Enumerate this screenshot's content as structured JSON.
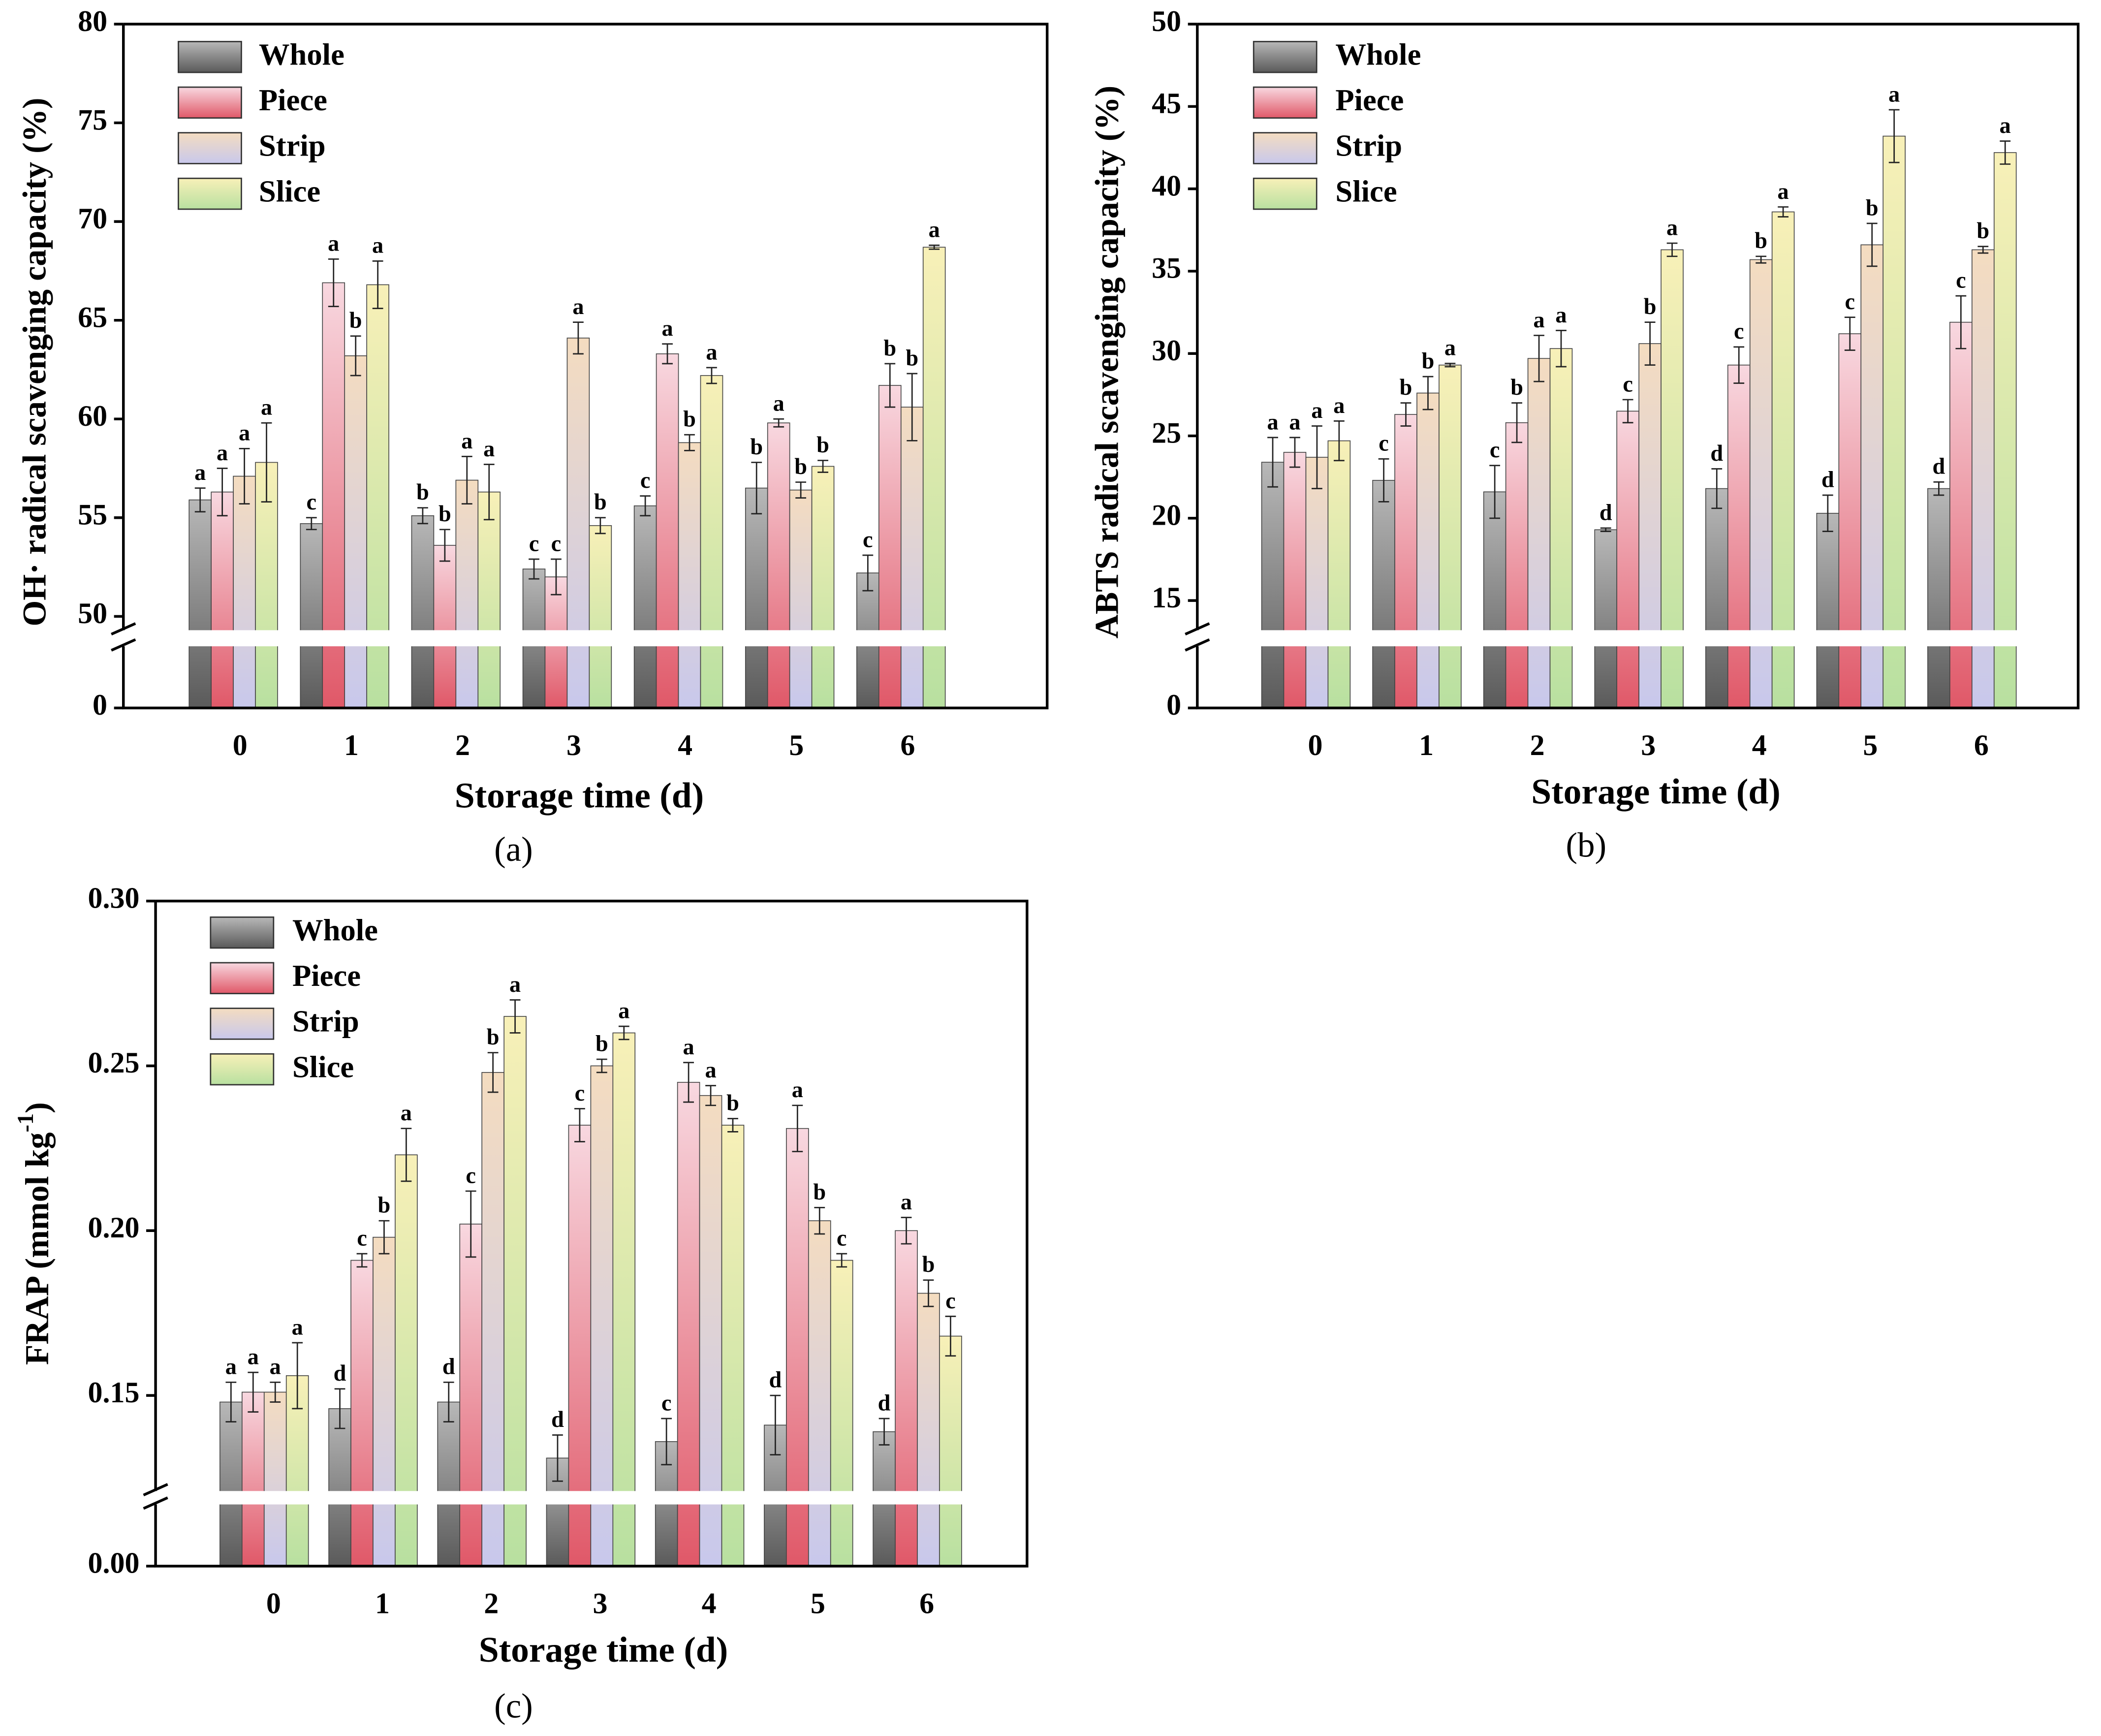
{
  "chart_data": [
    {
      "type": "bar",
      "caption": "(a)",
      "xlabel": "Storage time (d)",
      "ylabel": [
        "OH· radical scavenging capacity (%)"
      ],
      "categories": [
        "0",
        "1",
        "2",
        "3",
        "4",
        "5",
        "6"
      ],
      "ylim": [
        49.3,
        80
      ],
      "yticks": [
        0,
        50,
        55,
        60,
        65,
        70,
        75,
        80
      ],
      "axis_break": true,
      "series": [
        {
          "name": "Whole",
          "color": [
            "#b8b8b8",
            "#5a5a5a"
          ],
          "values": [
            55.9,
            54.7,
            55.1,
            52.4,
            55.6,
            56.5,
            52.2
          ],
          "errors": [
            0.6,
            0.3,
            0.4,
            0.5,
            0.5,
            1.3,
            0.9
          ],
          "letters": [
            "a",
            "c",
            "b",
            "c",
            "c",
            "b",
            "c"
          ]
        },
        {
          "name": "Piece",
          "color": [
            "#f8d8e0",
            "#e05868"
          ],
          "values": [
            56.3,
            66.9,
            53.6,
            52.0,
            63.3,
            59.8,
            61.7
          ],
          "errors": [
            1.2,
            1.2,
            0.8,
            0.9,
            0.5,
            0.2,
            1.1
          ],
          "letters": [
            "a",
            "a",
            "b",
            "c",
            "a",
            "a",
            "b"
          ]
        },
        {
          "name": "Strip",
          "color": [
            "#f4dcc0",
            "#c8c8ec"
          ],
          "values": [
            57.1,
            63.2,
            56.9,
            64.1,
            58.8,
            56.4,
            60.6
          ],
          "errors": [
            1.4,
            1.0,
            1.2,
            0.8,
            0.4,
            0.4,
            1.7
          ],
          "letters": [
            "a",
            "b",
            "a",
            "a",
            "b",
            "b",
            "b"
          ]
        },
        {
          "name": "Slice",
          "color": [
            "#f8f0b8",
            "#b8e0a0"
          ],
          "values": [
            57.8,
            66.8,
            56.3,
            54.6,
            62.2,
            57.6,
            68.7
          ],
          "errors": [
            2.0,
            1.2,
            1.4,
            0.4,
            0.4,
            0.3,
            0.1
          ],
          "letters": [
            "a",
            "a",
            "a",
            "b",
            "a",
            "b",
            "a"
          ]
        }
      ]
    },
    {
      "type": "bar",
      "caption": "(b)",
      "xlabel": "Storage time (d)",
      "ylabel": [
        "ABTS radical scavenging capacity (%)"
      ],
      "categories": [
        "0",
        "1",
        "2",
        "3",
        "4",
        "5",
        "6"
      ],
      "ylim": [
        13.2,
        50
      ],
      "yticks": [
        0,
        15,
        20,
        25,
        30,
        35,
        40,
        45,
        50
      ],
      "axis_break": true,
      "series": [
        {
          "name": "Whole",
          "color": [
            "#b8b8b8",
            "#5a5a5a"
          ],
          "values": [
            23.4,
            22.3,
            21.6,
            19.3,
            21.8,
            20.3,
            21.8
          ],
          "errors": [
            1.5,
            1.3,
            1.6,
            0.1,
            1.2,
            1.1,
            0.4
          ],
          "letters": [
            "a",
            "c",
            "c",
            "d",
            "d",
            "d",
            "d"
          ]
        },
        {
          "name": "Piece",
          "color": [
            "#f8d8e0",
            "#e05868"
          ],
          "values": [
            24.0,
            26.3,
            25.8,
            26.5,
            29.3,
            31.2,
            31.9
          ],
          "errors": [
            0.9,
            0.7,
            1.2,
            0.7,
            1.1,
            1.0,
            1.6
          ],
          "letters": [
            "a",
            "b",
            "b",
            "c",
            "c",
            "c",
            "c"
          ]
        },
        {
          "name": "Strip",
          "color": [
            "#f4dcc0",
            "#c8c8ec"
          ],
          "values": [
            23.7,
            27.6,
            29.7,
            30.6,
            35.7,
            36.6,
            36.3
          ],
          "errors": [
            1.9,
            1.0,
            1.4,
            1.3,
            0.2,
            1.3,
            0.2
          ],
          "letters": [
            "a",
            "b",
            "a",
            "b",
            "b",
            "b",
            "b"
          ]
        },
        {
          "name": "Slice",
          "color": [
            "#f8f0b8",
            "#b8e0a0"
          ],
          "values": [
            24.7,
            29.3,
            30.3,
            36.3,
            38.6,
            43.2,
            42.2
          ],
          "errors": [
            1.2,
            0.1,
            1.1,
            0.4,
            0.3,
            1.6,
            0.7
          ],
          "letters": [
            "a",
            "a",
            "a",
            "a",
            "a",
            "a",
            "a"
          ]
        }
      ]
    },
    {
      "type": "bar",
      "caption": "(c)",
      "xlabel": "Storage time (d)",
      "ylabel": [
        "FRAP (mmol kg",
        "-1",
        ")"
      ],
      "categories": [
        "0",
        "1",
        "2",
        "3",
        "4",
        "5",
        "6"
      ],
      "ylim": [
        0.121,
        0.3
      ],
      "yticks": [
        {
          "value": 0,
          "label": "0.00"
        },
        0.15,
        {
          "value": 0.2,
          "label": "0.20"
        },
        0.25,
        {
          "value": 0.3,
          "label": "0.30"
        }
      ],
      "axis_break": true,
      "series": [
        {
          "name": "Whole",
          "color": [
            "#b8b8b8",
            "#5a5a5a"
          ],
          "values": [
            0.148,
            0.146,
            0.148,
            0.131,
            0.136,
            0.141,
            0.139
          ],
          "errors": [
            0.006,
            0.006,
            0.006,
            0.007,
            0.007,
            0.009,
            0.004
          ],
          "letters": [
            "a",
            "d",
            "d",
            "d",
            "c",
            "d",
            "d"
          ]
        },
        {
          "name": "Piece",
          "color": [
            "#f8d8e0",
            "#e05868"
          ],
          "values": [
            0.151,
            0.191,
            0.202,
            0.232,
            0.245,
            0.231,
            0.2
          ],
          "errors": [
            0.006,
            0.002,
            0.01,
            0.005,
            0.006,
            0.007,
            0.004
          ],
          "letters": [
            "a",
            "c",
            "c",
            "c",
            "a",
            "a",
            "a"
          ]
        },
        {
          "name": "Strip",
          "color": [
            "#f4dcc0",
            "#c8c8ec"
          ],
          "values": [
            0.151,
            0.198,
            0.248,
            0.25,
            0.241,
            0.203,
            0.181
          ],
          "errors": [
            0.003,
            0.005,
            0.006,
            0.002,
            0.003,
            0.004,
            0.004
          ],
          "letters": [
            "a",
            "b",
            "b",
            "b",
            "a",
            "b",
            "b"
          ]
        },
        {
          "name": "Slice",
          "color": [
            "#f8f0b8",
            "#b8e0a0"
          ],
          "values": [
            0.156,
            0.223,
            0.265,
            0.26,
            0.232,
            0.191,
            0.168
          ],
          "errors": [
            0.01,
            0.008,
            0.005,
            0.002,
            0.002,
            0.002,
            0.006
          ],
          "letters": [
            "a",
            "a",
            "a",
            "a",
            "b",
            "c",
            "c"
          ]
        }
      ]
    }
  ]
}
